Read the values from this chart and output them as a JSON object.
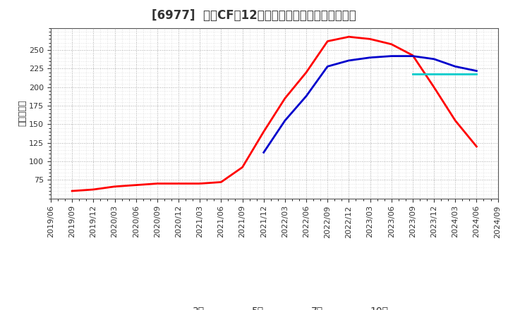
{
  "title": "[6977]  営業CFだ12か月移動合計の標準偶差の推移",
  "ylabel": "（百万円）",
  "background_color": "#ffffff",
  "plot_bg_color": "#ffffff",
  "grid_color": "#aaaaaa",
  "ylim": [
    50,
    280
  ],
  "yticks": [
    75,
    100,
    125,
    150,
    175,
    200,
    225,
    250
  ],
  "series": {
    "3年": {
      "color": "#ff0000",
      "dates": [
        "2019/09",
        "2019/12",
        "2020/03",
        "2020/06",
        "2020/09",
        "2020/12",
        "2021/03",
        "2021/06",
        "2021/09",
        "2021/12",
        "2022/03",
        "2022/06",
        "2022/09",
        "2022/12",
        "2023/03",
        "2023/06",
        "2023/09",
        "2023/12",
        "2024/03",
        "2024/06"
      ],
      "values": [
        60,
        62,
        66,
        68,
        70,
        70,
        70,
        72,
        92,
        140,
        185,
        220,
        262,
        268,
        265,
        258,
        243,
        200,
        155,
        120
      ]
    },
    "5年": {
      "color": "#0000cc",
      "dates": [
        "2021/12",
        "2022/03",
        "2022/06",
        "2022/09",
        "2022/12",
        "2023/03",
        "2023/06",
        "2023/09",
        "2023/12",
        "2024/03",
        "2024/06"
      ],
      "values": [
        112,
        155,
        188,
        228,
        236,
        240,
        242,
        242,
        238,
        228,
        222
      ]
    },
    "7年": {
      "color": "#00cccc",
      "dates": [
        "2023/09",
        "2023/12",
        "2024/03",
        "2024/06"
      ],
      "values": [
        218,
        218,
        218,
        218
      ]
    },
    "10年": {
      "color": "#008800",
      "dates": [],
      "values": []
    }
  },
  "xtick_labels": [
    "2019/06",
    "2019/09",
    "2019/12",
    "2020/03",
    "2020/06",
    "2020/09",
    "2020/12",
    "2021/03",
    "2021/06",
    "2021/09",
    "2021/12",
    "2022/03",
    "2022/06",
    "2022/09",
    "2022/12",
    "2023/03",
    "2023/06",
    "2023/09",
    "2023/12",
    "2024/03",
    "2024/06",
    "2024/09"
  ],
  "title_fontsize": 12,
  "label_fontsize": 9,
  "tick_fontsize": 8,
  "legend_fontsize": 10
}
